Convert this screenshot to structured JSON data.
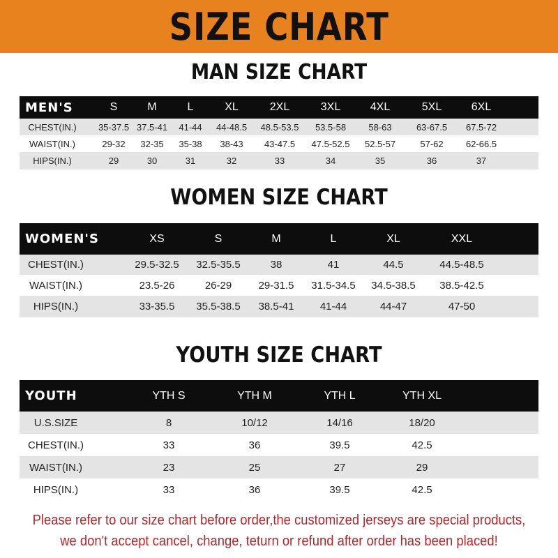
{
  "title": "SIZE CHART",
  "colors": {
    "banner": "#e8821e",
    "header_row": "#0d0d0d",
    "stripe": "#e4e4e4",
    "notice": "#b3262a"
  },
  "men": {
    "heading": "MAN SIZE CHART",
    "columns": [
      "MEN'S",
      "S",
      "M",
      "L",
      "XL",
      "2XL",
      "3XL",
      "4XL",
      "5XL",
      "6XL"
    ],
    "rows": [
      [
        "CHEST(IN.)",
        "35-37.5",
        "37.5-41",
        "41-44",
        "44-48.5",
        "48.5-53.5",
        "53.5-58",
        "58-63",
        "63-67.5",
        "67.5-72"
      ],
      [
        "WAIST(IN.)",
        "29-32",
        "32-35",
        "35-38",
        "38-43",
        "43-47.5",
        "47.5-52.5",
        "52.5-57",
        "57-62",
        "62-66.5"
      ],
      [
        "HIPS(IN.)",
        "29",
        "30",
        "31",
        "32",
        "33",
        "34",
        "35",
        "36",
        "37"
      ]
    ]
  },
  "women": {
    "heading": "WOMEN SIZE CHART",
    "columns": [
      "WOMEN'S",
      "XS",
      "S",
      "M",
      "L",
      "XL",
      "XXL"
    ],
    "rows": [
      [
        "CHEST(IN.)",
        "29.5-32.5",
        "32.5-35.5",
        "38",
        "41",
        "44.5",
        "44.5-48.5"
      ],
      [
        "WAIST(IN.)",
        "23.5-26",
        "26-29",
        "29-31.5",
        "31.5-34.5",
        "34.5-38.5",
        "38.5-42.5"
      ],
      [
        "HIPS(IN.)",
        "33-35.5",
        "35.5-38.5",
        "38.5-41",
        "41-44",
        "44-47",
        "47-50"
      ]
    ]
  },
  "youth": {
    "heading": "YOUTH SIZE CHART",
    "columns": [
      "YOUTH",
      "YTH S",
      "YTH M",
      "YTH L",
      "YTH XL"
    ],
    "rows": [
      [
        "U.S.SIZE",
        "8",
        "10/12",
        "14/16",
        "18/20"
      ],
      [
        "CHEST(IN.)",
        "33",
        "36",
        "39.5",
        "42.5"
      ],
      [
        "WAIST(IN.)",
        "23",
        "25",
        "27",
        "29"
      ],
      [
        "HIPS(IN.)",
        "33",
        "36",
        "39.5",
        "42.5"
      ]
    ]
  },
  "notice": {
    "line1": "Please refer to our size chart before order,the customized jerseys are special products,",
    "line2": "we don't accept cancel, change, teturn or refund after order has been placed!"
  }
}
